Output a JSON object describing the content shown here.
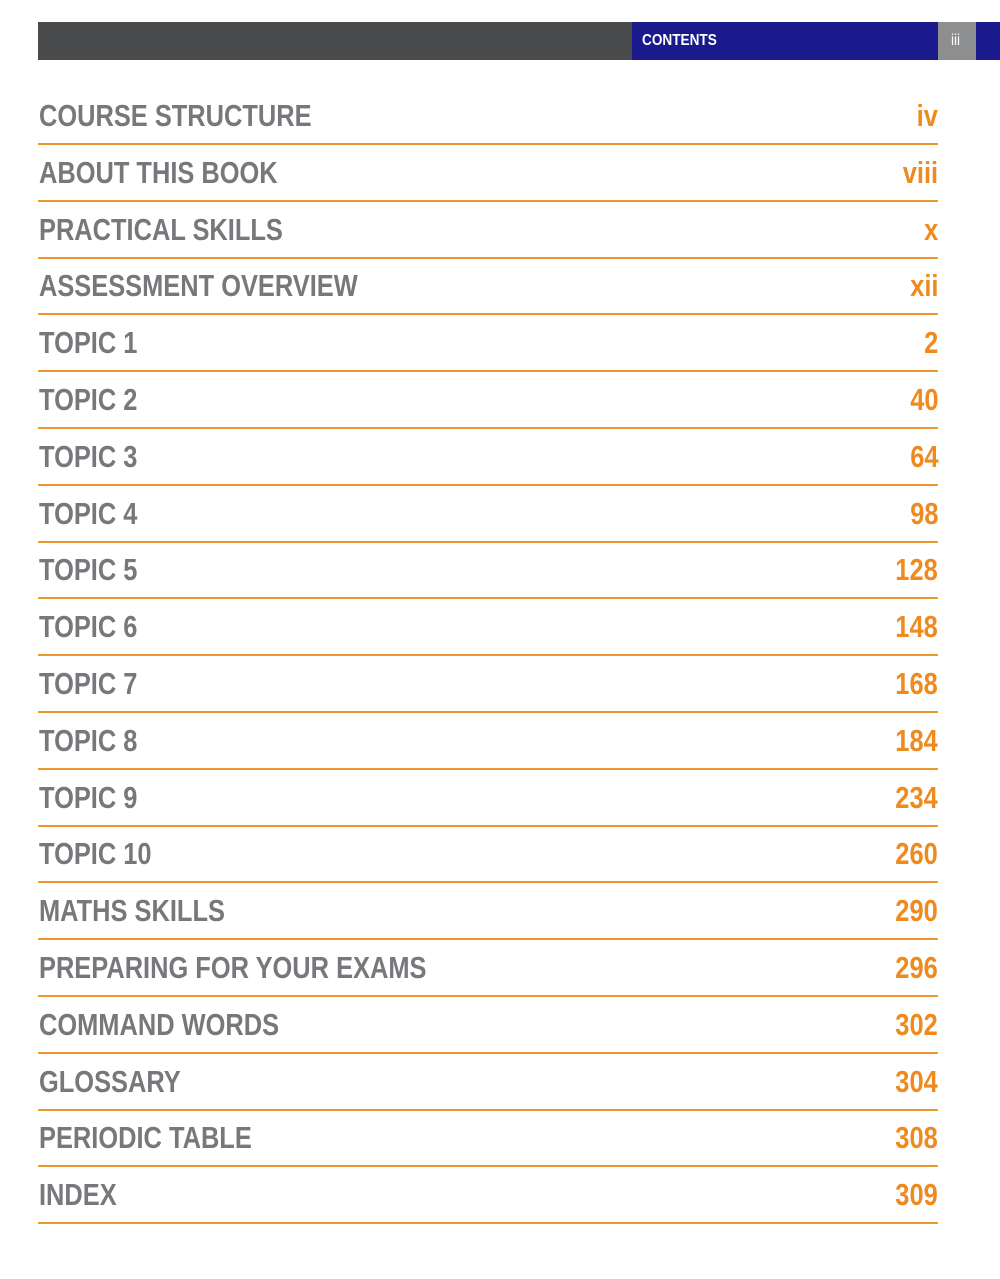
{
  "header": {
    "section": "CONTENTS",
    "page_number": "iii"
  },
  "entries": [
    {
      "title": "COURSE STRUCTURE",
      "page": "iv"
    },
    {
      "title": "ABOUT THIS BOOK",
      "page": "viii"
    },
    {
      "title": "PRACTICAL SKILLS",
      "page": "x"
    },
    {
      "title": "ASSESSMENT OVERVIEW",
      "page": "xii"
    },
    {
      "title": "TOPIC 1",
      "page": "2"
    },
    {
      "title": "TOPIC 2",
      "page": "40"
    },
    {
      "title": "TOPIC 3",
      "page": "64"
    },
    {
      "title": "TOPIC 4",
      "page": "98"
    },
    {
      "title": "TOPIC 5",
      "page": "128"
    },
    {
      "title": "TOPIC 6",
      "page": "148"
    },
    {
      "title": "TOPIC 7",
      "page": "168"
    },
    {
      "title": "TOPIC 8",
      "page": "184"
    },
    {
      "title": "TOPIC 9",
      "page": "234"
    },
    {
      "title": "TOPIC 10",
      "page": "260"
    },
    {
      "title": "MATHS SKILLS",
      "page": "290"
    },
    {
      "title": "PREPARING FOR YOUR EXAMS",
      "page": "296"
    },
    {
      "title": "COMMAND WORDS",
      "page": "302"
    },
    {
      "title": "GLOSSARY",
      "page": "304"
    },
    {
      "title": "PERIODIC TABLE",
      "page": "308"
    },
    {
      "title": "INDEX",
      "page": "309"
    }
  ]
}
